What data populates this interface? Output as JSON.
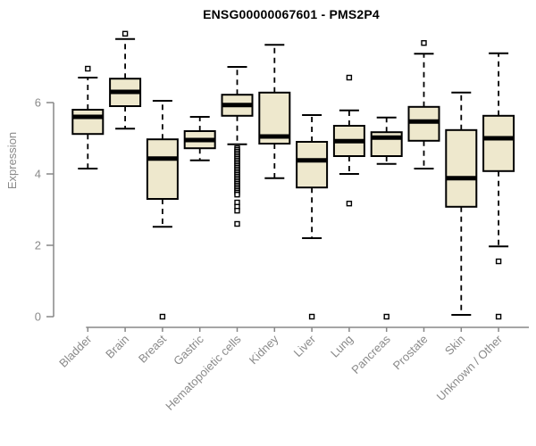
{
  "title": "ENSG00000067601 - PMS2P4",
  "colors": {
    "box_fill": "#EEE8CD",
    "box_border": "#000000",
    "median": "#000000",
    "whisker": "#000000",
    "axis_line": "#878787",
    "axis_text": "#8a8a8a",
    "title_text": "#000000",
    "background": "#ffffff"
  },
  "chart_data": {
    "type": "boxplot",
    "title": "ENSG00000067601 - PMS2P4",
    "xlabel": "",
    "ylabel": "Expression",
    "ylim": [
      0,
      8
    ],
    "yticks": [
      0,
      2,
      4,
      6
    ],
    "grid": false,
    "legend": "none",
    "categories": [
      "Bladder",
      "Brain",
      "Breast",
      "Gastric",
      "Hematopoietic cells",
      "Kidney",
      "Liver",
      "Lung",
      "Pancreas",
      "Prostate",
      "Skin",
      "Unknown / Other"
    ],
    "boxes": [
      {
        "category": "Bladder",
        "whisker_low": 4.15,
        "q1": 5.12,
        "median": 5.6,
        "q3": 5.8,
        "whisker_high": 6.7,
        "outliers": [
          6.95
        ]
      },
      {
        "category": "Brain",
        "whisker_low": 5.27,
        "q1": 5.9,
        "median": 6.3,
        "q3": 6.67,
        "whisker_high": 7.78,
        "outliers": [
          7.93
        ]
      },
      {
        "category": "Breast",
        "whisker_low": 2.52,
        "q1": 3.3,
        "median": 4.43,
        "q3": 4.97,
        "whisker_high": 6.05,
        "outliers": [
          0.0
        ]
      },
      {
        "category": "Gastric",
        "whisker_low": 4.38,
        "q1": 4.72,
        "median": 4.95,
        "q3": 5.2,
        "whisker_high": 5.6,
        "outliers": []
      },
      {
        "category": "Hematopoietic cells",
        "whisker_low": 4.83,
        "q1": 5.63,
        "median": 5.93,
        "q3": 6.22,
        "whisker_high": 7.0,
        "outliers": [
          4.72,
          4.67,
          4.62,
          4.57,
          4.52,
          4.47,
          4.42,
          4.37,
          4.32,
          4.27,
          4.22,
          4.17,
          4.12,
          4.07,
          4.02,
          3.97,
          3.92,
          3.87,
          3.82,
          3.77,
          3.72,
          3.67,
          3.62,
          3.57,
          3.52,
          3.47,
          3.42,
          3.2,
          3.08,
          2.97,
          2.6
        ]
      },
      {
        "category": "Kidney",
        "whisker_low": 3.88,
        "q1": 4.85,
        "median": 5.05,
        "q3": 6.28,
        "whisker_high": 7.62,
        "outliers": []
      },
      {
        "category": "Liver",
        "whisker_low": 2.2,
        "q1": 3.62,
        "median": 4.38,
        "q3": 4.9,
        "whisker_high": 5.65,
        "outliers": [
          0.0
        ]
      },
      {
        "category": "Lung",
        "whisker_low": 4.0,
        "q1": 4.5,
        "median": 4.92,
        "q3": 5.35,
        "whisker_high": 5.78,
        "outliers": [
          6.7,
          3.17
        ]
      },
      {
        "category": "Pancreas",
        "whisker_low": 4.28,
        "q1": 4.5,
        "median": 5.02,
        "q3": 5.17,
        "whisker_high": 5.58,
        "outliers": [
          0.0
        ]
      },
      {
        "category": "Prostate",
        "whisker_low": 4.15,
        "q1": 4.93,
        "median": 5.47,
        "q3": 5.88,
        "whisker_high": 7.37,
        "outliers": [
          7.67
        ]
      },
      {
        "category": "Skin",
        "whisker_low": 0.05,
        "q1": 3.08,
        "median": 3.88,
        "q3": 5.23,
        "whisker_high": 6.28,
        "outliers": []
      },
      {
        "category": "Unknown / Other",
        "whisker_low": 1.97,
        "q1": 4.08,
        "median": 5.0,
        "q3": 5.63,
        "whisker_high": 7.38,
        "outliers": [
          1.55,
          0.0
        ]
      }
    ]
  }
}
